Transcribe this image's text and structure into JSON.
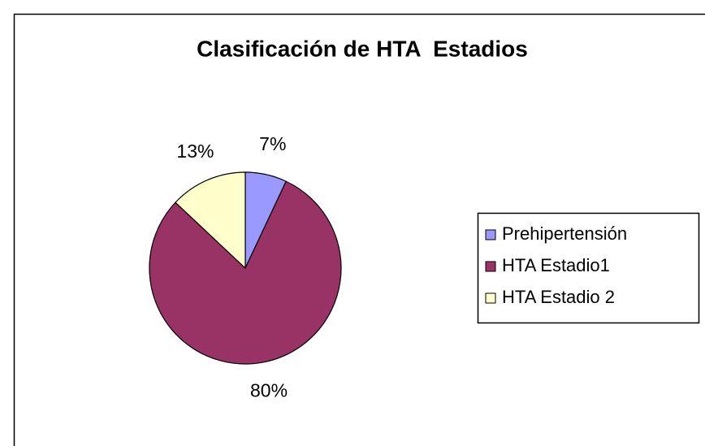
{
  "chart_data": {
    "type": "pie",
    "title": "Clasificación de HTA  Estadios",
    "categories": [
      "Prehipertensión",
      "HTA Estadio1",
      "HTA Estadio 2"
    ],
    "values": [
      7,
      80,
      13
    ],
    "value_labels": [
      "7%",
      "80%",
      "13%"
    ],
    "colors": [
      "#9999ff",
      "#993366",
      "#ffffcc"
    ],
    "legend": "right"
  }
}
